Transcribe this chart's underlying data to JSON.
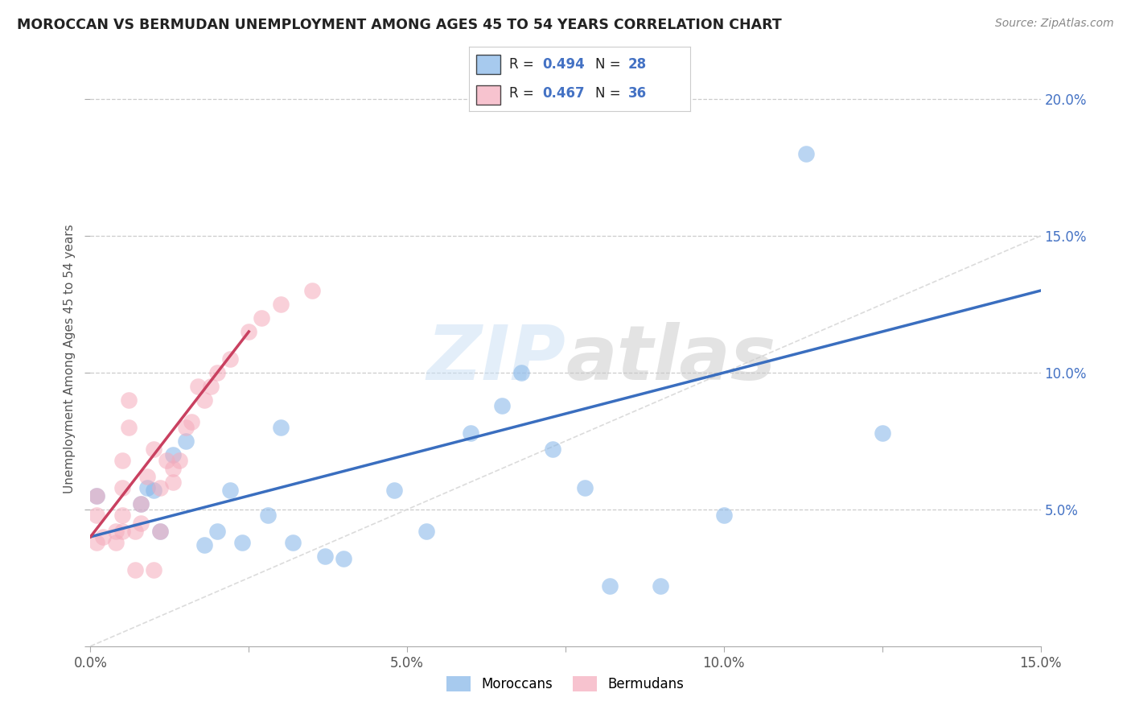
{
  "title": "MOROCCAN VS BERMUDAN UNEMPLOYMENT AMONG AGES 45 TO 54 YEARS CORRELATION CHART",
  "source": "Source: ZipAtlas.com",
  "ylabel": "Unemployment Among Ages 45 to 54 years",
  "xlim": [
    0.0,
    0.15
  ],
  "ylim": [
    0.0,
    0.21
  ],
  "xticks": [
    0.0,
    0.025,
    0.05,
    0.075,
    0.1,
    0.125,
    0.15
  ],
  "xticklabels": [
    "0.0%",
    "",
    "5.0%",
    "",
    "10.0%",
    "",
    "15.0%"
  ],
  "yticks_left": [
    0.0,
    0.05,
    0.1,
    0.15,
    0.2
  ],
  "yticklabels_left": [
    "",
    "",
    "",
    "",
    ""
  ],
  "yticks_right": [
    0.05,
    0.1,
    0.15,
    0.2
  ],
  "yticklabels_right": [
    "5.0%",
    "10.0%",
    "15.0%",
    "20.0%"
  ],
  "moroccan_color": "#82B4E8",
  "bermudan_color": "#F5AABB",
  "moroccan_line_color": "#3A6EBF",
  "bermudan_line_color": "#C94060",
  "diagonal_color": "#D8D8D8",
  "r_moroccan": 0.494,
  "n_moroccan": 28,
  "r_bermudan": 0.467,
  "n_bermudan": 36,
  "watermark_zip": "ZIP",
  "watermark_atlas": "atlas",
  "moroccan_x": [
    0.001,
    0.008,
    0.009,
    0.01,
    0.011,
    0.013,
    0.015,
    0.018,
    0.02,
    0.022,
    0.024,
    0.028,
    0.03,
    0.032,
    0.037,
    0.04,
    0.048,
    0.053,
    0.06,
    0.065,
    0.068,
    0.073,
    0.078,
    0.082,
    0.09,
    0.1,
    0.113,
    0.125
  ],
  "moroccan_y": [
    0.055,
    0.052,
    0.058,
    0.057,
    0.042,
    0.07,
    0.075,
    0.037,
    0.042,
    0.057,
    0.038,
    0.048,
    0.08,
    0.038,
    0.033,
    0.032,
    0.057,
    0.042,
    0.078,
    0.088,
    0.1,
    0.072,
    0.058,
    0.022,
    0.022,
    0.048,
    0.18,
    0.078
  ],
  "bermudan_x": [
    0.001,
    0.001,
    0.001,
    0.002,
    0.004,
    0.004,
    0.005,
    0.005,
    0.005,
    0.005,
    0.006,
    0.006,
    0.007,
    0.007,
    0.008,
    0.008,
    0.009,
    0.01,
    0.01,
    0.011,
    0.011,
    0.012,
    0.013,
    0.013,
    0.014,
    0.015,
    0.016,
    0.017,
    0.018,
    0.019,
    0.02,
    0.022,
    0.025,
    0.027,
    0.03,
    0.035
  ],
  "bermudan_y": [
    0.038,
    0.048,
    0.055,
    0.04,
    0.038,
    0.042,
    0.042,
    0.048,
    0.058,
    0.068,
    0.08,
    0.09,
    0.028,
    0.042,
    0.045,
    0.052,
    0.062,
    0.072,
    0.028,
    0.042,
    0.058,
    0.068,
    0.06,
    0.065,
    0.068,
    0.08,
    0.082,
    0.095,
    0.09,
    0.095,
    0.1,
    0.105,
    0.115,
    0.12,
    0.125,
    0.13
  ],
  "moroccan_line_x0": 0.0,
  "moroccan_line_x1": 0.15,
  "moroccan_line_y0": 0.04,
  "moroccan_line_y1": 0.13,
  "bermudan_line_x0": 0.0,
  "bermudan_line_x1": 0.025,
  "bermudan_line_y0": 0.04,
  "bermudan_line_y1": 0.115
}
